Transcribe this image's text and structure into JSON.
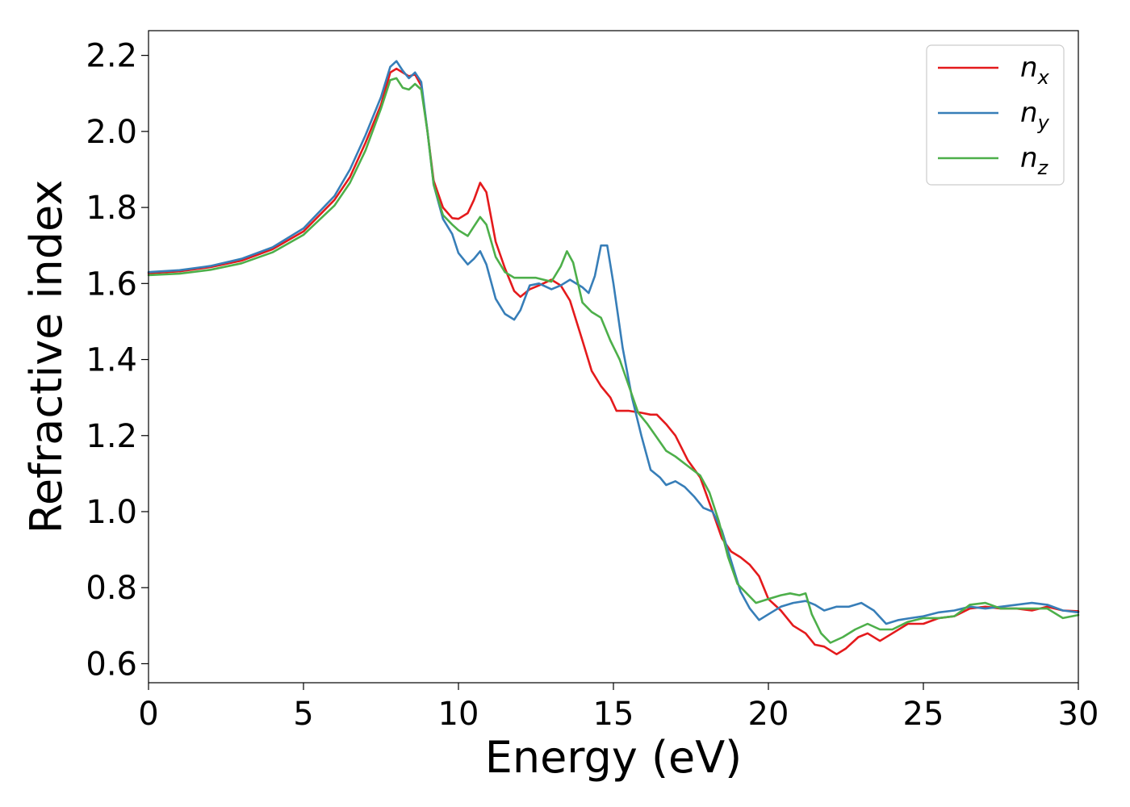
{
  "chart_data": {
    "type": "line",
    "title": "",
    "xlabel": "Energy (eV)",
    "ylabel": "Refractive index",
    "xlim": [
      0,
      30
    ],
    "ylim": [
      0.55,
      2.265
    ],
    "xticks": [
      0,
      5,
      10,
      15,
      20,
      25,
      30
    ],
    "xtick_labels": [
      "0",
      "5",
      "10",
      "15",
      "20",
      "25",
      "30"
    ],
    "yticks": [
      0.6,
      0.8,
      1.0,
      1.2,
      1.4,
      1.6,
      1.8,
      2.0,
      2.2
    ],
    "ytick_labels": [
      "0.6",
      "0.8",
      "1.0",
      "1.2",
      "1.4",
      "1.6",
      "1.8",
      "2.0",
      "2.2"
    ],
    "grid": false,
    "legend_position": "top-right",
    "series": [
      {
        "name": "n",
        "subscript": "x",
        "color": "#e41a1c",
        "points": [
          [
            0,
            1.627
          ],
          [
            1,
            1.632
          ],
          [
            2,
            1.643
          ],
          [
            3,
            1.66
          ],
          [
            4,
            1.69
          ],
          [
            5,
            1.737
          ],
          [
            6,
            1.82
          ],
          [
            6.5,
            1.88
          ],
          [
            7,
            1.97
          ],
          [
            7.5,
            2.07
          ],
          [
            7.8,
            2.155
          ],
          [
            8.0,
            2.165
          ],
          [
            8.2,
            2.155
          ],
          [
            8.4,
            2.145
          ],
          [
            8.6,
            2.15
          ],
          [
            8.8,
            2.12
          ],
          [
            9.0,
            2.0
          ],
          [
            9.2,
            1.87
          ],
          [
            9.5,
            1.8
          ],
          [
            9.8,
            1.772
          ],
          [
            10.0,
            1.77
          ],
          [
            10.3,
            1.785
          ],
          [
            10.5,
            1.82
          ],
          [
            10.7,
            1.865
          ],
          [
            10.9,
            1.84
          ],
          [
            11.2,
            1.71
          ],
          [
            11.5,
            1.64
          ],
          [
            11.8,
            1.58
          ],
          [
            12.0,
            1.565
          ],
          [
            12.3,
            1.585
          ],
          [
            12.6,
            1.595
          ],
          [
            13.0,
            1.61
          ],
          [
            13.3,
            1.595
          ],
          [
            13.6,
            1.555
          ],
          [
            14.0,
            1.45
          ],
          [
            14.3,
            1.37
          ],
          [
            14.6,
            1.33
          ],
          [
            14.9,
            1.3
          ],
          [
            15.1,
            1.265
          ],
          [
            15.5,
            1.265
          ],
          [
            15.9,
            1.26
          ],
          [
            16.2,
            1.255
          ],
          [
            16.4,
            1.255
          ],
          [
            16.7,
            1.23
          ],
          [
            17.0,
            1.2
          ],
          [
            17.4,
            1.135
          ],
          [
            17.8,
            1.09
          ],
          [
            18.2,
            1.0
          ],
          [
            18.5,
            0.93
          ],
          [
            18.8,
            0.895
          ],
          [
            19.1,
            0.88
          ],
          [
            19.4,
            0.86
          ],
          [
            19.7,
            0.83
          ],
          [
            20.0,
            0.77
          ],
          [
            20.4,
            0.74
          ],
          [
            20.8,
            0.7
          ],
          [
            21.2,
            0.68
          ],
          [
            21.5,
            0.65
          ],
          [
            21.8,
            0.645
          ],
          [
            22.2,
            0.625
          ],
          [
            22.5,
            0.64
          ],
          [
            22.9,
            0.67
          ],
          [
            23.2,
            0.68
          ],
          [
            23.6,
            0.66
          ],
          [
            24.0,
            0.68
          ],
          [
            24.5,
            0.705
          ],
          [
            25.0,
            0.705
          ],
          [
            25.5,
            0.72
          ],
          [
            26.0,
            0.725
          ],
          [
            26.5,
            0.745
          ],
          [
            27.0,
            0.75
          ],
          [
            27.5,
            0.745
          ],
          [
            28.0,
            0.745
          ],
          [
            28.5,
            0.74
          ],
          [
            29.0,
            0.75
          ],
          [
            29.5,
            0.74
          ],
          [
            30.0,
            0.738
          ]
        ]
      },
      {
        "name": "n",
        "subscript": "y",
        "color": "#377eb8",
        "points": [
          [
            0,
            1.63
          ],
          [
            1,
            1.635
          ],
          [
            2,
            1.646
          ],
          [
            3,
            1.665
          ],
          [
            4,
            1.695
          ],
          [
            5,
            1.745
          ],
          [
            6,
            1.83
          ],
          [
            6.5,
            1.9
          ],
          [
            7,
            1.99
          ],
          [
            7.5,
            2.09
          ],
          [
            7.8,
            2.17
          ],
          [
            8.0,
            2.185
          ],
          [
            8.2,
            2.16
          ],
          [
            8.4,
            2.14
          ],
          [
            8.6,
            2.155
          ],
          [
            8.8,
            2.13
          ],
          [
            9.0,
            2.0
          ],
          [
            9.2,
            1.86
          ],
          [
            9.5,
            1.77
          ],
          [
            9.8,
            1.73
          ],
          [
            10.0,
            1.68
          ],
          [
            10.3,
            1.65
          ],
          [
            10.5,
            1.665
          ],
          [
            10.7,
            1.685
          ],
          [
            10.9,
            1.65
          ],
          [
            11.2,
            1.56
          ],
          [
            11.5,
            1.52
          ],
          [
            11.8,
            1.505
          ],
          [
            12.0,
            1.53
          ],
          [
            12.3,
            1.595
          ],
          [
            12.6,
            1.6
          ],
          [
            13.0,
            1.585
          ],
          [
            13.3,
            1.595
          ],
          [
            13.6,
            1.61
          ],
          [
            14.0,
            1.59
          ],
          [
            14.2,
            1.575
          ],
          [
            14.4,
            1.62
          ],
          [
            14.6,
            1.7
          ],
          [
            14.8,
            1.7
          ],
          [
            15.0,
            1.6
          ],
          [
            15.3,
            1.43
          ],
          [
            15.6,
            1.3
          ],
          [
            15.9,
            1.2
          ],
          [
            16.2,
            1.11
          ],
          [
            16.5,
            1.09
          ],
          [
            16.7,
            1.07
          ],
          [
            17.0,
            1.08
          ],
          [
            17.3,
            1.065
          ],
          [
            17.6,
            1.04
          ],
          [
            17.9,
            1.01
          ],
          [
            18.2,
            1.0
          ],
          [
            18.5,
            0.95
          ],
          [
            18.8,
            0.87
          ],
          [
            19.1,
            0.79
          ],
          [
            19.4,
            0.745
          ],
          [
            19.7,
            0.715
          ],
          [
            20.0,
            0.73
          ],
          [
            20.4,
            0.75
          ],
          [
            20.8,
            0.76
          ],
          [
            21.2,
            0.765
          ],
          [
            21.5,
            0.755
          ],
          [
            21.8,
            0.74
          ],
          [
            22.2,
            0.75
          ],
          [
            22.6,
            0.75
          ],
          [
            23.0,
            0.76
          ],
          [
            23.4,
            0.74
          ],
          [
            23.8,
            0.705
          ],
          [
            24.2,
            0.715
          ],
          [
            24.6,
            0.72
          ],
          [
            25.0,
            0.725
          ],
          [
            25.5,
            0.735
          ],
          [
            26.0,
            0.74
          ],
          [
            26.5,
            0.75
          ],
          [
            27.0,
            0.745
          ],
          [
            27.5,
            0.75
          ],
          [
            28.0,
            0.755
          ],
          [
            28.5,
            0.76
          ],
          [
            29.0,
            0.755
          ],
          [
            29.5,
            0.74
          ],
          [
            30.0,
            0.735
          ]
        ]
      },
      {
        "name": "n",
        "subscript": "z",
        "color": "#4daf4a",
        "points": [
          [
            0,
            1.622
          ],
          [
            1,
            1.626
          ],
          [
            2,
            1.636
          ],
          [
            3,
            1.653
          ],
          [
            4,
            1.682
          ],
          [
            5,
            1.728
          ],
          [
            6,
            1.805
          ],
          [
            6.5,
            1.865
          ],
          [
            7,
            1.95
          ],
          [
            7.5,
            2.06
          ],
          [
            7.8,
            2.135
          ],
          [
            8.0,
            2.14
          ],
          [
            8.2,
            2.115
          ],
          [
            8.4,
            2.11
          ],
          [
            8.6,
            2.125
          ],
          [
            8.8,
            2.11
          ],
          [
            9.0,
            2.0
          ],
          [
            9.2,
            1.86
          ],
          [
            9.5,
            1.78
          ],
          [
            9.8,
            1.755
          ],
          [
            10.0,
            1.74
          ],
          [
            10.3,
            1.725
          ],
          [
            10.5,
            1.75
          ],
          [
            10.7,
            1.775
          ],
          [
            10.9,
            1.755
          ],
          [
            11.2,
            1.67
          ],
          [
            11.5,
            1.63
          ],
          [
            11.8,
            1.615
          ],
          [
            12.0,
            1.615
          ],
          [
            12.5,
            1.615
          ],
          [
            13.0,
            1.605
          ],
          [
            13.3,
            1.645
          ],
          [
            13.5,
            1.685
          ],
          [
            13.7,
            1.655
          ],
          [
            14.0,
            1.55
          ],
          [
            14.3,
            1.525
          ],
          [
            14.6,
            1.51
          ],
          [
            14.9,
            1.45
          ],
          [
            15.2,
            1.4
          ],
          [
            15.5,
            1.33
          ],
          [
            15.8,
            1.26
          ],
          [
            16.1,
            1.23
          ],
          [
            16.4,
            1.195
          ],
          [
            16.7,
            1.16
          ],
          [
            17.0,
            1.145
          ],
          [
            17.4,
            1.12
          ],
          [
            17.8,
            1.095
          ],
          [
            18.1,
            1.05
          ],
          [
            18.4,
            0.975
          ],
          [
            18.7,
            0.88
          ],
          [
            19.0,
            0.81
          ],
          [
            19.3,
            0.785
          ],
          [
            19.6,
            0.76
          ],
          [
            20.0,
            0.77
          ],
          [
            20.4,
            0.78
          ],
          [
            20.7,
            0.785
          ],
          [
            21.0,
            0.78
          ],
          [
            21.2,
            0.785
          ],
          [
            21.4,
            0.73
          ],
          [
            21.7,
            0.68
          ],
          [
            22.0,
            0.655
          ],
          [
            22.4,
            0.67
          ],
          [
            22.8,
            0.69
          ],
          [
            23.2,
            0.705
          ],
          [
            23.6,
            0.69
          ],
          [
            24.0,
            0.69
          ],
          [
            24.5,
            0.71
          ],
          [
            25.0,
            0.72
          ],
          [
            25.5,
            0.72
          ],
          [
            26.0,
            0.725
          ],
          [
            26.5,
            0.755
          ],
          [
            27.0,
            0.76
          ],
          [
            27.5,
            0.745
          ],
          [
            28.0,
            0.745
          ],
          [
            28.5,
            0.745
          ],
          [
            29.0,
            0.745
          ],
          [
            29.5,
            0.72
          ],
          [
            30.0,
            0.728
          ]
        ]
      }
    ]
  }
}
